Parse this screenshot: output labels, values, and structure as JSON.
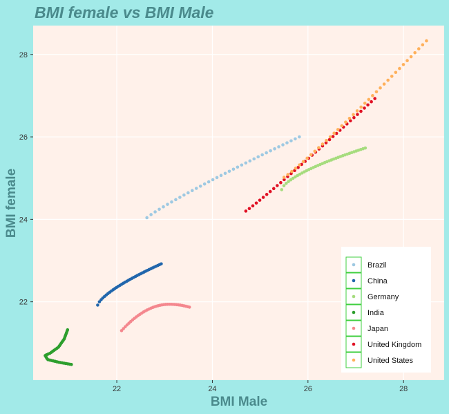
{
  "chart_data": {
    "type": "scatter",
    "title": "BMI female vs BMI Male",
    "xlabel": "BMI Male",
    "ylabel": "BMI female",
    "xlim": [
      20.25,
      28.85
    ],
    "ylim": [
      20.1,
      28.7
    ],
    "xticks": [
      22,
      24,
      26,
      28
    ],
    "yticks": [
      22,
      24,
      26,
      28
    ],
    "grid": true,
    "legend_position": "bottom-right",
    "series": [
      {
        "name": "Brazil",
        "color": "#9ec9e2",
        "start": [
          22.63,
          24.04
        ],
        "end": [
          25.82,
          26.0
        ],
        "curve": 0.9,
        "n": 38
      },
      {
        "name": "China",
        "color": "#2166ac",
        "start": [
          21.6,
          21.92
        ],
        "end": [
          22.93,
          22.92
        ],
        "curve": 0.7,
        "n": 38
      },
      {
        "name": "Germany",
        "color": "#a6dc7e",
        "start": [
          25.45,
          24.72
        ],
        "end": [
          27.2,
          25.73
        ],
        "curve": 0.65,
        "n": 38
      },
      {
        "name": "India",
        "color": "#2d9e2d",
        "pts": [
          [
            20.97,
            21.32
          ],
          [
            20.9,
            21.1
          ],
          [
            20.78,
            20.9
          ],
          [
            20.6,
            20.75
          ],
          [
            20.5,
            20.7
          ],
          [
            20.55,
            20.6
          ],
          [
            20.8,
            20.53
          ],
          [
            21.05,
            20.48
          ]
        ],
        "n": 38
      },
      {
        "name": "Japan",
        "color": "#f4878e",
        "start": [
          22.1,
          21.3
        ],
        "end": [
          23.52,
          21.87
        ],
        "peak": [
          23.1,
          21.94
        ],
        "n": 38
      },
      {
        "name": "United Kingdom",
        "color": "#e01024",
        "start": [
          24.7,
          24.2
        ],
        "end": [
          27.4,
          26.93
        ],
        "curve": 1.05,
        "n": 38
      },
      {
        "name": "United States",
        "color": "#ffb05a",
        "start": [
          25.5,
          25.02
        ],
        "end": [
          28.48,
          28.33
        ],
        "curve": 1.08,
        "n": 38
      }
    ]
  }
}
